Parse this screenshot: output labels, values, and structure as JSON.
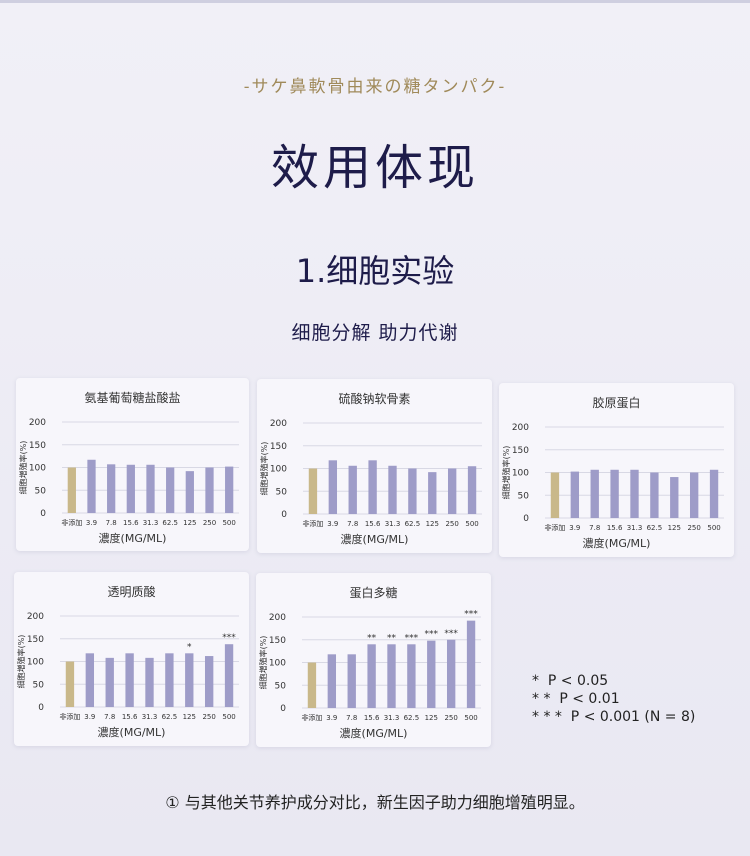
{
  "brand": "-サケ鼻軟骨由来の糖タンパク-",
  "title": "效用体现",
  "section": "1.细胞实验",
  "subtitle": "细胞分解 助力代谢",
  "colors": {
    "control": "#c9b88a",
    "bar": "#9e9cc8",
    "grid": "#d8d8e4",
    "text": "#333333"
  },
  "chart_data": [
    {
      "type": "bar",
      "title": "氨基葡萄糖盐酸盐",
      "xlabel": "濃度(MG/ML)",
      "ylabel": "細胞増殖率(%)",
      "ylim": [
        0,
        200
      ],
      "yticks": [
        "0",
        "50",
        "100",
        "150",
        "200"
      ],
      "categories": [
        "非添加",
        "3.9",
        "7.8",
        "15.6",
        "31.3",
        "62.5",
        "125",
        "250",
        "500"
      ],
      "values": [
        100,
        117,
        107,
        106,
        106,
        100,
        92,
        100,
        102
      ],
      "significance": [
        "",
        "",
        "",
        "",
        "",
        "",
        "",
        "",
        ""
      ]
    },
    {
      "type": "bar",
      "title": "硫酸钠软骨素",
      "xlabel": "濃度(MG/ML)",
      "ylabel": "細胞増殖率(%)",
      "ylim": [
        0,
        200
      ],
      "yticks": [
        "0",
        "50",
        "100",
        "150",
        "200"
      ],
      "categories": [
        "非添加",
        "3.9",
        "7.8",
        "15.6",
        "31.3",
        "62.5",
        "125",
        "250",
        "500"
      ],
      "values": [
        100,
        118,
        106,
        118,
        106,
        100,
        92,
        100,
        105
      ],
      "significance": [
        "",
        "",
        "",
        "",
        "",
        "",
        "",
        "",
        ""
      ]
    },
    {
      "type": "bar",
      "title": "胶原蛋白",
      "xlabel": "濃度(MG/ML)",
      "ylabel": "細胞増殖率(%)",
      "ylim": [
        0,
        200
      ],
      "yticks": [
        "0",
        "50",
        "100",
        "150",
        "200"
      ],
      "categories": [
        "非添加",
        "3.9",
        "7.8",
        "15.6",
        "31.3",
        "62.5",
        "125",
        "250",
        "500"
      ],
      "values": [
        100,
        102,
        106,
        106,
        106,
        100,
        90,
        100,
        106
      ],
      "significance": [
        "",
        "",
        "",
        "",
        "",
        "",
        "",
        "",
        ""
      ]
    },
    {
      "type": "bar",
      "title": "透明质酸",
      "xlabel": "濃度(MG/ML)",
      "ylabel": "細胞増殖率(%)",
      "ylim": [
        0,
        200
      ],
      "yticks": [
        "0",
        "50",
        "100",
        "150",
        "200"
      ],
      "categories": [
        "非添加",
        "3.9",
        "7.8",
        "15.6",
        "31.3",
        "62.5",
        "125",
        "250",
        "500"
      ],
      "values": [
        100,
        118,
        108,
        118,
        108,
        118,
        118,
        112,
        138
      ],
      "significance": [
        "",
        "",
        "",
        "",
        "",
        "",
        "*",
        "",
        "***"
      ]
    },
    {
      "type": "bar",
      "title": "蛋白多糖",
      "xlabel": "濃度(MG/ML)",
      "ylabel": "細胞増殖率(%)",
      "ylim": [
        0,
        200
      ],
      "yticks": [
        "0",
        "50",
        "100",
        "150",
        "200"
      ],
      "categories": [
        "非添加",
        "3.9",
        "7.8",
        "15.6",
        "31.3",
        "62.5",
        "125",
        "250",
        "500"
      ],
      "values": [
        100,
        118,
        118,
        140,
        140,
        140,
        148,
        150,
        192
      ],
      "significance": [
        "",
        "",
        "",
        "**",
        "**",
        "***",
        "***",
        "***",
        "***"
      ]
    }
  ],
  "legend": [
    "*  P < 0.05",
    "* *  P < 0.01",
    "* * *  P < 0.001 (N = 8)"
  ],
  "footnote": "① 与其他关节养护成分对比，新生因子助力细胞增殖明显。"
}
